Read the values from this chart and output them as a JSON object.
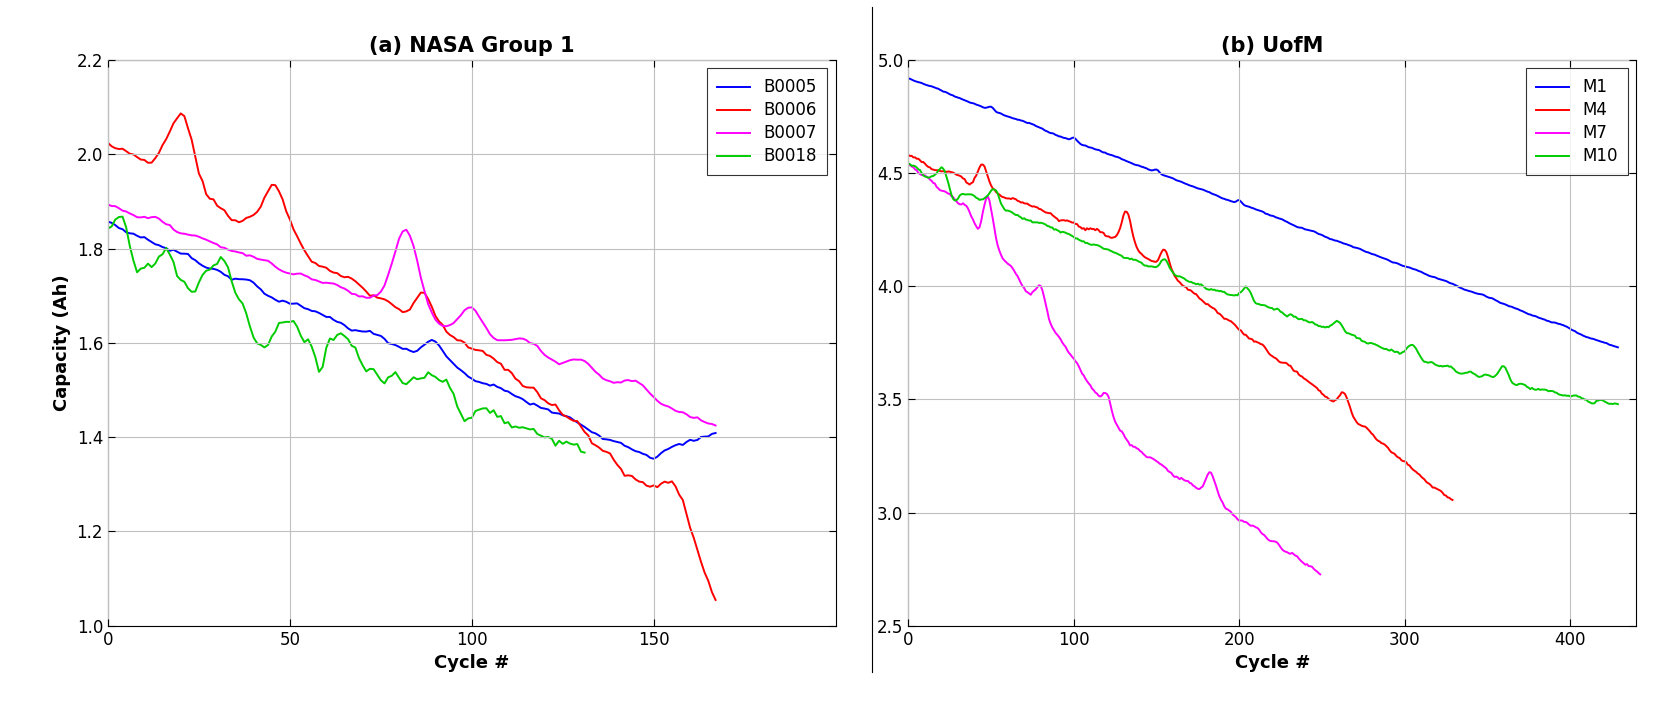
{
  "title_left": "(a) NASA Group 1",
  "title_right": "(b) UofM",
  "ylabel": "Capacity (Ah)",
  "xlabel": "Cycle #",
  "left_xlim": [
    0,
    200
  ],
  "left_ylim": [
    1.0,
    2.2
  ],
  "right_xlim": [
    0,
    440
  ],
  "right_ylim": [
    2.5,
    5.0
  ],
  "left_xticks": [
    0,
    50,
    100,
    150
  ],
  "left_yticks": [
    1.0,
    1.2,
    1.4,
    1.6,
    1.8,
    2.0,
    2.2
  ],
  "right_xticks": [
    0,
    100,
    200,
    300,
    400
  ],
  "right_yticks": [
    2.5,
    3.0,
    3.5,
    4.0,
    4.5,
    5.0
  ],
  "colors": {
    "blue": "#0000FF",
    "red": "#FF0000",
    "magenta": "#FF00FF",
    "green": "#00CC00"
  },
  "legend_left": [
    "B0005",
    "B0006",
    "B0007",
    "B0018"
  ],
  "legend_right": [
    "M1",
    "M4",
    "M7",
    "M10"
  ],
  "grid_color": "#c0c0c0",
  "title_fontsize": 15,
  "label_fontsize": 13,
  "tick_fontsize": 12,
  "legend_fontsize": 12,
  "linewidth": 1.4,
  "background_color": "#ffffff"
}
